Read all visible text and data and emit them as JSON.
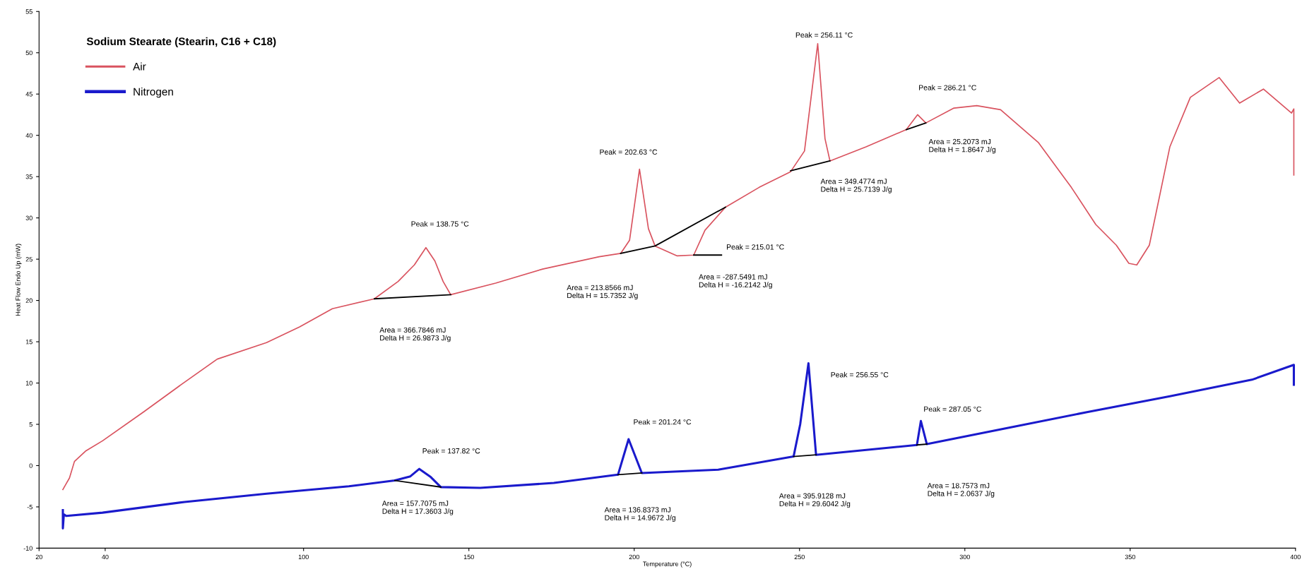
{
  "chart_data": {
    "type": "line",
    "legend_title": "Sodium Stearate (Stearin, C16 + C18)",
    "xlabel": "Temperature (°C)",
    "ylabel": "Heat Flow Endo Up (mW)",
    "xlim": [
      20,
      400
    ],
    "xticks": [
      20,
      40,
      100,
      150,
      200,
      250,
      300,
      350,
      400
    ],
    "ylim": [
      -10,
      55
    ],
    "yticks": [
      -10,
      -5,
      0,
      5,
      10,
      15,
      20,
      25,
      30,
      35,
      40,
      45,
      50,
      55
    ],
    "grid": false,
    "legend": "top left",
    "series": [
      {
        "name": "Air",
        "color": "#d9535f",
        "x": [
          27.2,
          28.2,
          29.2,
          30.7,
          34.2,
          39.2,
          51.6,
          64.0,
          73.9,
          88.8,
          98.8,
          108.7,
          121.4,
          128.6,
          133.5,
          137.0,
          139.7,
          142.2,
          144.5,
          158.1,
          172.3,
          189.4,
          195.9,
          198.6,
          201.6,
          204.3,
          206.3,
          213.0,
          218.0,
          221.4,
          227.6,
          237.8,
          247.3,
          251.5,
          255.5,
          257.7,
          259.2,
          270.1,
          282.3,
          285.7,
          288.2,
          296.7,
          303.6,
          310.8,
          322.3,
          332.2,
          339.6,
          345.8,
          349.6,
          352.0,
          355.8,
          362.0,
          368.2,
          376.9,
          383.1,
          390.3,
          398.8,
          399.5,
          399.5
        ],
        "values": [
          -2.9,
          -2.2,
          -1.5,
          0.5,
          1.8,
          3.0,
          6.5,
          10.1,
          12.9,
          14.9,
          16.8,
          19.0,
          20.2,
          22.3,
          24.3,
          26.4,
          24.8,
          22.3,
          20.7,
          22.1,
          23.8,
          25.3,
          25.7,
          27.3,
          35.9,
          28.7,
          26.6,
          25.4,
          25.5,
          28.5,
          31.3,
          33.7,
          35.6,
          38.1,
          51.1,
          39.6,
          36.9,
          38.6,
          40.7,
          42.5,
          41.5,
          43.3,
          43.6,
          43.1,
          39.1,
          33.7,
          29.2,
          26.7,
          24.5,
          24.3,
          26.7,
          38.6,
          44.6,
          47.0,
          43.9,
          45.6,
          42.7,
          43.2,
          35.2
        ]
      },
      {
        "name": "Nitrogen",
        "color": "#1a1acc",
        "x": [
          27.2,
          27.2,
          27.5,
          28.2,
          39.2,
          64.0,
          88.8,
          113.7,
          127.6,
          132.3,
          135.0,
          138.5,
          141.5,
          153.4,
          175.7,
          195.1,
          198.3,
          202.3,
          225.4,
          248.2,
          250.2,
          252.7,
          255.0,
          275.1,
          285.5,
          286.7,
          288.5,
          312.3,
          337.2,
          362.0,
          386.8,
          399.5,
          399.5
        ],
        "values": [
          -5.4,
          -7.6,
          -5.9,
          -6.1,
          -5.7,
          -4.4,
          -3.4,
          -2.5,
          -1.8,
          -1.3,
          -0.4,
          -1.4,
          -2.6,
          -2.7,
          -2.1,
          -1.1,
          3.2,
          -0.9,
          -0.5,
          1.1,
          5.0,
          12.4,
          1.3,
          2.1,
          2.5,
          5.4,
          2.6,
          4.5,
          6.5,
          8.4,
          10.4,
          12.2,
          9.8
        ]
      },
      {
        "color": "#000000",
        "x": [
          121.4,
          144.5
        ],
        "values": [
          20.2,
          20.7
        ]
      },
      {
        "color": "#000000",
        "x": [
          195.9,
          206.3,
          227.6
        ],
        "values": [
          25.7,
          26.6,
          31.3
        ]
      },
      {
        "color": "#000000",
        "x": [
          218.0,
          226.4
        ],
        "values": [
          25.5,
          25.5
        ]
      },
      {
        "color": "#000000",
        "x": [
          247.3,
          259.2
        ],
        "values": [
          35.7,
          36.9
        ]
      },
      {
        "color": "#000000",
        "x": [
          282.3,
          288.2
        ],
        "values": [
          40.7,
          41.5
        ]
      },
      {
        "color": "#000000",
        "x": [
          127.6,
          141.5
        ],
        "values": [
          -1.8,
          -2.6
        ]
      },
      {
        "color": "#000000",
        "x": [
          195.1,
          202.3
        ],
        "values": [
          -1.1,
          -0.9
        ]
      },
      {
        "color": "#000000",
        "x": [
          248.2,
          255.0
        ],
        "values": [
          1.1,
          1.3
        ]
      },
      {
        "color": "#000000",
        "x": [
          285.5,
          288.5
        ],
        "values": [
          2.5,
          2.6
        ]
      }
    ],
    "annotations": [
      "Peak = 138.75 °C",
      "Area = 366.7846 mJ\nDelta H = 26.9873 J/g",
      "Peak = 202.63 °C",
      "Area = 213.8566 mJ\nDelta H = 15.7352 J/g",
      "Peak = 215.01 °C",
      "Area = -287.5491 mJ\nDelta H = -16.2142 J/g",
      "Peak = 256.11 °C",
      "Area = 349.4774 mJ\nDelta H = 25.7139 J/g",
      "Peak = 286.21 °C",
      "Area = 25.2073 mJ\nDelta H = 1.8647 J/g",
      "Peak = 137.82 °C",
      "Area = 157.7075 mJ\nDelta H = 17.3603 J/g",
      "Peak = 201.24 °C",
      "Area = 136.8373 mJ\nDelta H = 14.9672 J/g",
      "Peak = 256.55 °C",
      "Area = 395.9128 mJ\nDelta H = 29.6042 J/g",
      "Peak = 287.05 °C",
      "Area = 18.7573 mJ\nDelta H = 2.0637 J/g"
    ]
  }
}
